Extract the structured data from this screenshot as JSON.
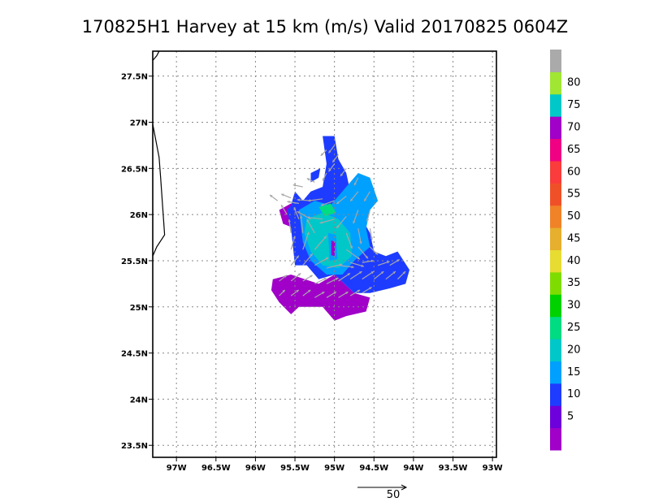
{
  "chart_data": {
    "type": "heatmap",
    "title": "170825H1 Harvey at 15 km (m/s) Valid 20170825 0604Z",
    "xlabel": "",
    "ylabel": "",
    "x_range": [
      -97.3,
      -92.95
    ],
    "y_range": [
      23.37,
      27.77
    ],
    "x_ticks": [
      {
        "value": -97.0,
        "label": "97W"
      },
      {
        "value": -96.5,
        "label": "96.5W"
      },
      {
        "value": -96.0,
        "label": "96W"
      },
      {
        "value": -95.5,
        "label": "95.5W"
      },
      {
        "value": -95.0,
        "label": "95W"
      },
      {
        "value": -94.5,
        "label": "94.5W"
      },
      {
        "value": -94.0,
        "label": "94W"
      },
      {
        "value": -93.5,
        "label": "93.5W"
      },
      {
        "value": -93.0,
        "label": "93W"
      }
    ],
    "y_ticks": [
      {
        "value": 23.5,
        "label": "23.5N"
      },
      {
        "value": 24.0,
        "label": "24N"
      },
      {
        "value": 24.5,
        "label": "24.5N"
      },
      {
        "value": 25.0,
        "label": "25N"
      },
      {
        "value": 25.5,
        "label": "25.5N"
      },
      {
        "value": 26.0,
        "label": "26N"
      },
      {
        "value": 26.5,
        "label": "26.5N"
      },
      {
        "value": 27.0,
        "label": "27N"
      },
      {
        "value": 27.5,
        "label": "27.5N"
      }
    ],
    "grid": true,
    "colorbar": {
      "labels": [
        "5",
        "10",
        "15",
        "20",
        "25",
        "30",
        "35",
        "40",
        "45",
        "50",
        "55",
        "60",
        "65",
        "70",
        "75",
        "80"
      ],
      "colors": [
        "#a000c8",
        "#6e00dc",
        "#1e3cff",
        "#00a0ff",
        "#00c8c8",
        "#00dc82",
        "#00d200",
        "#7fdc00",
        "#e6dc32",
        "#e6af2d",
        "#f08228",
        "#f05028",
        "#fa3c3c",
        "#f00082",
        "#a000c8",
        "#00c8c8",
        "#a0e632",
        "#aaaaaa"
      ]
    },
    "coastline": [
      [
        -97.3,
        27.67
      ],
      [
        -97.25,
        27.72
      ],
      [
        -97.22,
        27.77
      ]
    ],
    "coastline2": [
      [
        -97.3,
        26.98
      ],
      [
        -97.22,
        26.62
      ],
      [
        -97.2,
        26.4
      ],
      [
        -97.15,
        25.78
      ],
      [
        -97.25,
        25.65
      ],
      [
        -97.3,
        25.55
      ]
    ],
    "reference_vector": {
      "label": "50",
      "speed": 50
    },
    "wind_regions": [
      {
        "level": "5",
        "color": "#a000c8",
        "polygon": [
          [
            -95.78,
            25.3
          ],
          [
            -95.55,
            25.35
          ],
          [
            -95.2,
            25.25
          ],
          [
            -95.0,
            25.35
          ],
          [
            -94.75,
            25.15
          ],
          [
            -94.55,
            25.1
          ],
          [
            -94.6,
            24.95
          ],
          [
            -94.85,
            24.9
          ],
          [
            -95.0,
            24.85
          ],
          [
            -95.15,
            25.0
          ],
          [
            -95.45,
            25.0
          ],
          [
            -95.55,
            24.92
          ],
          [
            -95.7,
            25.05
          ],
          [
            -95.8,
            25.18
          ]
        ]
      },
      {
        "level": "5",
        "color": "#a000c8",
        "polygon": [
          [
            -95.7,
            26.05
          ],
          [
            -95.55,
            26.12
          ],
          [
            -95.45,
            26.05
          ],
          [
            -95.5,
            25.85
          ],
          [
            -95.65,
            25.9
          ]
        ]
      },
      {
        "level": "5",
        "color": "#a000c8",
        "polygon": [
          [
            -95.05,
            25.8
          ],
          [
            -94.95,
            25.75
          ],
          [
            -94.98,
            25.5
          ],
          [
            -95.08,
            25.55
          ]
        ]
      },
      {
        "level": "10",
        "color": "#1e3cff",
        "polygon": [
          [
            -95.55,
            25.85
          ],
          [
            -95.6,
            26.05
          ],
          [
            -95.55,
            26.1
          ],
          [
            -95.5,
            26.25
          ],
          [
            -95.4,
            26.15
          ],
          [
            -95.3,
            26.25
          ],
          [
            -95.15,
            26.3
          ],
          [
            -95.1,
            26.55
          ],
          [
            -95.15,
            26.85
          ],
          [
            -95.0,
            26.85
          ],
          [
            -94.95,
            26.6
          ],
          [
            -94.85,
            26.45
          ],
          [
            -94.8,
            26.25
          ],
          [
            -94.6,
            26.1
          ],
          [
            -94.65,
            25.95
          ],
          [
            -94.55,
            25.8
          ],
          [
            -94.5,
            25.6
          ],
          [
            -94.35,
            25.55
          ],
          [
            -94.2,
            25.6
          ],
          [
            -94.05,
            25.4
          ],
          [
            -94.1,
            25.25
          ],
          [
            -94.3,
            25.2
          ],
          [
            -94.55,
            25.15
          ],
          [
            -94.75,
            25.15
          ],
          [
            -95.0,
            25.35
          ],
          [
            -95.2,
            25.3
          ],
          [
            -95.35,
            25.45
          ],
          [
            -95.5,
            25.45
          ]
        ]
      },
      {
        "level": "10",
        "color": "#1e3cff",
        "polygon": [
          [
            -95.3,
            26.35
          ],
          [
            -95.2,
            26.4
          ],
          [
            -95.18,
            26.5
          ],
          [
            -95.3,
            26.45
          ]
        ]
      },
      {
        "level": "15",
        "color": "#00a0ff",
        "polygon": [
          [
            -95.45,
            26.05
          ],
          [
            -95.25,
            26.15
          ],
          [
            -95.05,
            26.1
          ],
          [
            -94.85,
            26.3
          ],
          [
            -94.7,
            26.45
          ],
          [
            -94.55,
            26.4
          ],
          [
            -94.45,
            26.15
          ],
          [
            -94.55,
            26.05
          ],
          [
            -94.6,
            25.85
          ],
          [
            -94.55,
            25.65
          ],
          [
            -94.75,
            25.5
          ],
          [
            -94.9,
            25.35
          ],
          [
            -95.1,
            25.35
          ],
          [
            -95.3,
            25.5
          ],
          [
            -95.4,
            25.7
          ]
        ]
      },
      {
        "level": "20",
        "color": "#00c8c8",
        "polygon": [
          [
            -95.35,
            25.95
          ],
          [
            -95.15,
            26.02
          ],
          [
            -94.95,
            25.95
          ],
          [
            -94.8,
            25.8
          ],
          [
            -94.78,
            25.55
          ],
          [
            -94.95,
            25.42
          ],
          [
            -95.15,
            25.45
          ],
          [
            -95.3,
            25.6
          ],
          [
            -95.38,
            25.8
          ]
        ]
      },
      {
        "level": "25",
        "color": "#00dc82",
        "polygon": [
          [
            -95.2,
            26.08
          ],
          [
            -95.05,
            26.12
          ],
          [
            -94.98,
            26.02
          ],
          [
            -95.12,
            25.98
          ]
        ]
      },
      {
        "level": "15",
        "color": "#00a0ff",
        "polygon": [
          [
            -95.08,
            25.8
          ],
          [
            -94.98,
            25.78
          ],
          [
            -94.96,
            25.52
          ],
          [
            -95.06,
            25.5
          ]
        ]
      },
      {
        "level": "5",
        "color": "#a000c8",
        "polygon": [
          [
            -95.04,
            25.72
          ],
          [
            -94.99,
            25.7
          ],
          [
            -95.0,
            25.55
          ],
          [
            -95.04,
            25.56
          ]
        ]
      }
    ],
    "vectors": [
      {
        "lon": -95.72,
        "lat": 26.15,
        "u": -8,
        "v": 6
      },
      {
        "lon": -95.55,
        "lat": 26.18,
        "u": -10,
        "v": 4
      },
      {
        "lon": -95.45,
        "lat": 26.12,
        "u": -12,
        "v": 2
      },
      {
        "lon": -95.3,
        "lat": 26.15,
        "u": -14,
        "v": 1
      },
      {
        "lon": -95.15,
        "lat": 26.17,
        "u": -15,
        "v": -2
      },
      {
        "lon": -95.0,
        "lat": 26.15,
        "u": -14,
        "v": -5
      },
      {
        "lon": -94.85,
        "lat": 26.2,
        "u": -10,
        "v": -8
      },
      {
        "lon": -94.7,
        "lat": 26.25,
        "u": -8,
        "v": -10
      },
      {
        "lon": -94.55,
        "lat": 26.25,
        "u": -6,
        "v": -10
      },
      {
        "lon": -95.6,
        "lat": 26.0,
        "u": -6,
        "v": 10
      },
      {
        "lon": -95.45,
        "lat": 25.95,
        "u": -5,
        "v": 12
      },
      {
        "lon": -95.3,
        "lat": 25.95,
        "u": -14,
        "v": 8
      },
      {
        "lon": -95.15,
        "lat": 25.95,
        "u": -16,
        "v": 2
      },
      {
        "lon": -95.0,
        "lat": 25.95,
        "u": -15,
        "v": -4
      },
      {
        "lon": -94.85,
        "lat": 25.98,
        "u": -10,
        "v": -12
      },
      {
        "lon": -94.7,
        "lat": 26.05,
        "u": -5,
        "v": -14
      },
      {
        "lon": -94.55,
        "lat": 26.05,
        "u": -3,
        "v": -12
      },
      {
        "lon": -95.55,
        "lat": 25.8,
        "u": -2,
        "v": 14
      },
      {
        "lon": -95.4,
        "lat": 25.8,
        "u": -2,
        "v": 18
      },
      {
        "lon": -95.25,
        "lat": 25.8,
        "u": -8,
        "v": 14
      },
      {
        "lon": -94.85,
        "lat": 25.8,
        "u": 6,
        "v": -16
      },
      {
        "lon": -94.7,
        "lat": 25.85,
        "u": 3,
        "v": -16
      },
      {
        "lon": -94.55,
        "lat": 25.85,
        "u": 2,
        "v": -12
      },
      {
        "lon": -95.55,
        "lat": 25.62,
        "u": 4,
        "v": 14
      },
      {
        "lon": -95.4,
        "lat": 25.62,
        "u": 6,
        "v": 18
      },
      {
        "lon": -95.25,
        "lat": 25.62,
        "u": 12,
        "v": 14
      },
      {
        "lon": -94.85,
        "lat": 25.62,
        "u": 14,
        "v": -10
      },
      {
        "lon": -94.7,
        "lat": 25.65,
        "u": 10,
        "v": -12
      },
      {
        "lon": -94.55,
        "lat": 25.65,
        "u": 8,
        "v": -8
      },
      {
        "lon": -95.55,
        "lat": 25.45,
        "u": 8,
        "v": 10
      },
      {
        "lon": -95.4,
        "lat": 25.45,
        "u": 10,
        "v": 12
      },
      {
        "lon": -95.25,
        "lat": 25.45,
        "u": 14,
        "v": 8
      },
      {
        "lon": -95.1,
        "lat": 25.42,
        "u": 16,
        "v": 4
      },
      {
        "lon": -94.95,
        "lat": 25.45,
        "u": 16,
        "v": -2
      },
      {
        "lon": -94.8,
        "lat": 25.48,
        "u": 14,
        "v": -4
      },
      {
        "lon": -94.65,
        "lat": 25.48,
        "u": 12,
        "v": 2
      },
      {
        "lon": -94.45,
        "lat": 25.45,
        "u": 12,
        "v": 4
      },
      {
        "lon": -94.3,
        "lat": 25.45,
        "u": 10,
        "v": 6
      },
      {
        "lon": -95.7,
        "lat": 25.28,
        "u": 8,
        "v": 6
      },
      {
        "lon": -95.55,
        "lat": 25.28,
        "u": 10,
        "v": 8
      },
      {
        "lon": -95.4,
        "lat": 25.28,
        "u": 10,
        "v": 6
      },
      {
        "lon": -95.25,
        "lat": 25.25,
        "u": 12,
        "v": 6
      },
      {
        "lon": -95.1,
        "lat": 25.25,
        "u": 12,
        "v": 6
      },
      {
        "lon": -94.95,
        "lat": 25.28,
        "u": 12,
        "v": 8
      },
      {
        "lon": -94.8,
        "lat": 25.3,
        "u": 12,
        "v": 8
      },
      {
        "lon": -94.65,
        "lat": 25.3,
        "u": 12,
        "v": 8
      },
      {
        "lon": -94.5,
        "lat": 25.3,
        "u": 10,
        "v": 8
      },
      {
        "lon": -94.35,
        "lat": 25.3,
        "u": 10,
        "v": 8
      },
      {
        "lon": -94.2,
        "lat": 25.3,
        "u": 8,
        "v": 8
      },
      {
        "lon": -95.7,
        "lat": 25.12,
        "u": 6,
        "v": 6
      },
      {
        "lon": -95.55,
        "lat": 25.12,
        "u": 8,
        "v": 6
      },
      {
        "lon": -95.4,
        "lat": 25.12,
        "u": 8,
        "v": 6
      },
      {
        "lon": -95.25,
        "lat": 25.1,
        "u": 10,
        "v": 6
      },
      {
        "lon": -95.1,
        "lat": 25.1,
        "u": 10,
        "v": 6
      },
      {
        "lon": -94.95,
        "lat": 25.1,
        "u": 10,
        "v": 6
      },
      {
        "lon": -94.8,
        "lat": 25.12,
        "u": 10,
        "v": 6
      },
      {
        "lon": -94.65,
        "lat": 25.15,
        "u": 10,
        "v": 6
      },
      {
        "lon": -95.1,
        "lat": 26.45,
        "u": -4,
        "v": -8
      },
      {
        "lon": -95.0,
        "lat": 26.55,
        "u": -6,
        "v": -8
      },
      {
        "lon": -95.1,
        "lat": 26.7,
        "u": -6,
        "v": -6
      },
      {
        "lon": -95.0,
        "lat": 26.75,
        "u": -6,
        "v": -8
      },
      {
        "lon": -94.95,
        "lat": 26.65,
        "u": -6,
        "v": -8
      },
      {
        "lon": -94.85,
        "lat": 26.5,
        "u": -6,
        "v": -8
      },
      {
        "lon": -94.7,
        "lat": 26.4,
        "u": -4,
        "v": -8
      },
      {
        "lon": -95.4,
        "lat": 26.3,
        "u": -10,
        "v": 2
      },
      {
        "lon": -95.25,
        "lat": 26.35,
        "u": -8,
        "v": 4
      }
    ]
  }
}
